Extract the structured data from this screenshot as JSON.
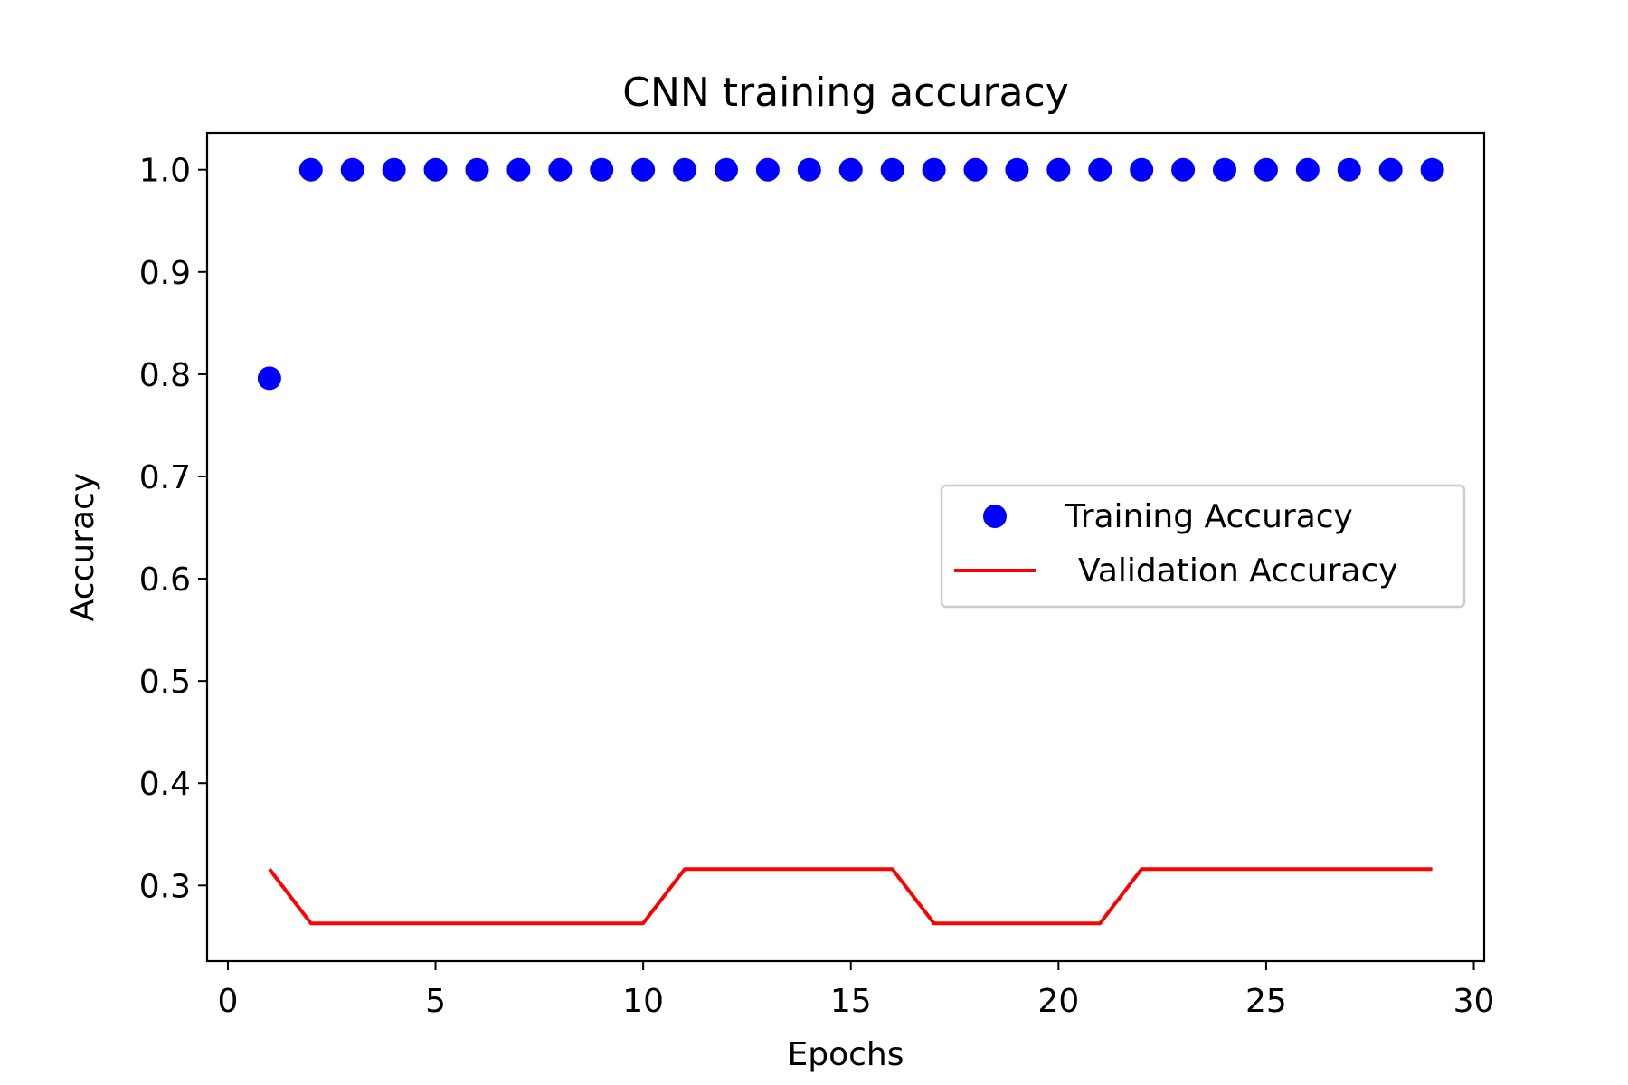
{
  "chart_data": {
    "type": "scatter",
    "title": "CNN training accuracy",
    "xlabel": "Epochs",
    "ylabel": "Accuracy",
    "xlim": [
      -0.5,
      30.25
    ],
    "ylim": [
      0.226,
      1.036
    ],
    "xticks": [
      0,
      5,
      10,
      15,
      20,
      25,
      30
    ],
    "xtick_labels": [
      "0",
      "5",
      "10",
      "15",
      "20",
      "25",
      "30"
    ],
    "yticks": [
      0.3,
      0.4,
      0.5,
      0.6,
      0.7,
      0.8,
      0.9,
      1.0
    ],
    "ytick_labels": [
      "0.3",
      "0.4",
      "0.5",
      "0.6",
      "0.7",
      "0.8",
      "0.9",
      "1.0"
    ],
    "grid": false,
    "legend_position": "center-right",
    "series": [
      {
        "name": "Training Accuracy",
        "style": "markers",
        "color": "#0000ff",
        "x": [
          1,
          2,
          3,
          4,
          5,
          6,
          7,
          8,
          9,
          10,
          11,
          12,
          13,
          14,
          15,
          16,
          17,
          18,
          19,
          20,
          21,
          22,
          23,
          24,
          25,
          26,
          27,
          28,
          29
        ],
        "y": [
          0.796,
          1.0,
          1.0,
          1.0,
          1.0,
          1.0,
          1.0,
          1.0,
          1.0,
          1.0,
          1.0,
          1.0,
          1.0,
          1.0,
          1.0,
          1.0,
          1.0,
          1.0,
          1.0,
          1.0,
          1.0,
          1.0,
          1.0,
          1.0,
          1.0,
          1.0,
          1.0,
          1.0,
          1.0
        ]
      },
      {
        "name": "Validation Accuracy",
        "style": "line",
        "color": "#ff0000",
        "x": [
          1,
          2,
          3,
          4,
          5,
          6,
          7,
          8,
          9,
          10,
          11,
          12,
          13,
          14,
          15,
          16,
          17,
          18,
          19,
          20,
          21,
          22,
          23,
          24,
          25,
          26,
          27,
          28,
          29
        ],
        "y": [
          0.316,
          0.263,
          0.263,
          0.263,
          0.263,
          0.263,
          0.263,
          0.263,
          0.263,
          0.263,
          0.316,
          0.316,
          0.316,
          0.316,
          0.316,
          0.316,
          0.263,
          0.263,
          0.263,
          0.263,
          0.263,
          0.316,
          0.316,
          0.316,
          0.316,
          0.316,
          0.316,
          0.316,
          0.316
        ]
      }
    ]
  }
}
